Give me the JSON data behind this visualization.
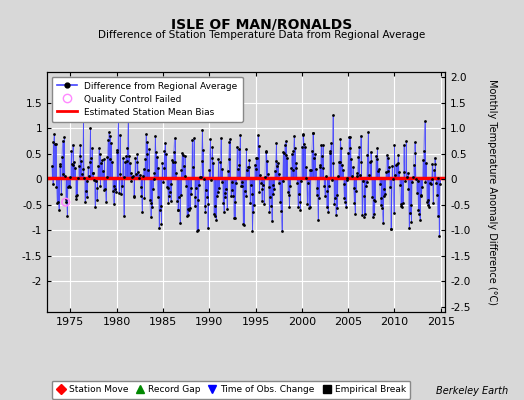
{
  "title": "ISLE OF MAN/RONALDS",
  "subtitle": "Difference of Station Temperature Data from Regional Average",
  "ylabel": "Monthly Temperature Anomaly Difference (°C)",
  "xlabel_years": [
    1975,
    1980,
    1985,
    1990,
    1995,
    2000,
    2005,
    2010,
    2015
  ],
  "ylim": [
    -2.6,
    2.1
  ],
  "yticks_left": [
    -2.0,
    -1.5,
    -1.0,
    -0.5,
    0.0,
    0.5,
    1.0,
    1.5
  ],
  "yticks_right": [
    -2.5,
    -2.0,
    -1.5,
    -1.0,
    -0.5,
    0.0,
    0.5,
    1.0,
    1.5,
    2.0
  ],
  "mean_bias": 0.02,
  "start_year": 1973,
  "end_year": 2015,
  "months_per_year": 12,
  "line_color": "#4444ff",
  "bias_color": "#ff0000",
  "dot_color": "#000000",
  "qc_circle_color": "#ff88ff",
  "background_color": "#d8d8d8",
  "grid_color": "#ffffff",
  "footnote": "Berkeley Earth",
  "bottom_legend_items": [
    {
      "label": "Station Move",
      "color": "#ff0000",
      "marker": "D"
    },
    {
      "label": "Record Gap",
      "color": "#008800",
      "marker": "^"
    },
    {
      "label": "Time of Obs. Change",
      "color": "#0000ff",
      "marker": "v"
    },
    {
      "label": "Empirical Break",
      "color": "#000000",
      "marker": "s"
    }
  ],
  "amplitude": 0.55,
  "noise_scale": 0.28,
  "long_var_amp": 0.15,
  "seed": 17
}
